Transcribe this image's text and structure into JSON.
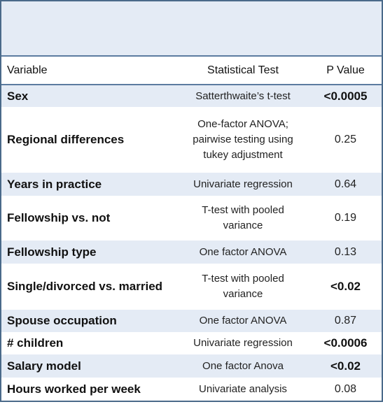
{
  "table": {
    "headers": {
      "variable": "Variable",
      "test": "Statistical Test",
      "p_value": "P Value"
    },
    "rows": [
      {
        "variable": "Sex",
        "test": [
          "Satterthwaite’s t-test"
        ],
        "p_value": "<0.0005",
        "p_bold": true
      },
      {
        "variable": "Regional differences",
        "test": [
          "One-factor ANOVA;",
          "pairwise testing using",
          "tukey adjustment"
        ],
        "p_value": "0.25",
        "p_bold": false
      },
      {
        "variable": "Years in practice",
        "test": [
          "Univariate regression"
        ],
        "p_value": "0.64",
        "p_bold": false
      },
      {
        "variable": "Fellowship vs. not",
        "test": [
          "T-test with pooled",
          "variance"
        ],
        "p_value": "0.19",
        "p_bold": false
      },
      {
        "variable": "Fellowship type",
        "test": [
          "One factor ANOVA"
        ],
        "p_value": "0.13",
        "p_bold": false
      },
      {
        "variable": "Single/divorced vs. married",
        "test": [
          "T-test with pooled",
          "variance"
        ],
        "p_value": "<0.02",
        "p_bold": true
      },
      {
        "variable": "Spouse occupation",
        "test": [
          "One factor ANOVA"
        ],
        "p_value": "0.87",
        "p_bold": false
      },
      {
        "variable": "# children",
        "test": [
          "Univariate regression"
        ],
        "p_value": "<0.0006",
        "p_bold": true
      },
      {
        "variable": "Salary model",
        "test": [
          "One factor Anova"
        ],
        "p_value": "<0.02",
        "p_bold": true
      },
      {
        "variable": "Hours worked per week",
        "test": [
          "Univariate analysis"
        ],
        "p_value": "0.08",
        "p_bold": false
      }
    ]
  },
  "colors": {
    "band": "#e4ebf5",
    "border": "#5b7ba0"
  }
}
